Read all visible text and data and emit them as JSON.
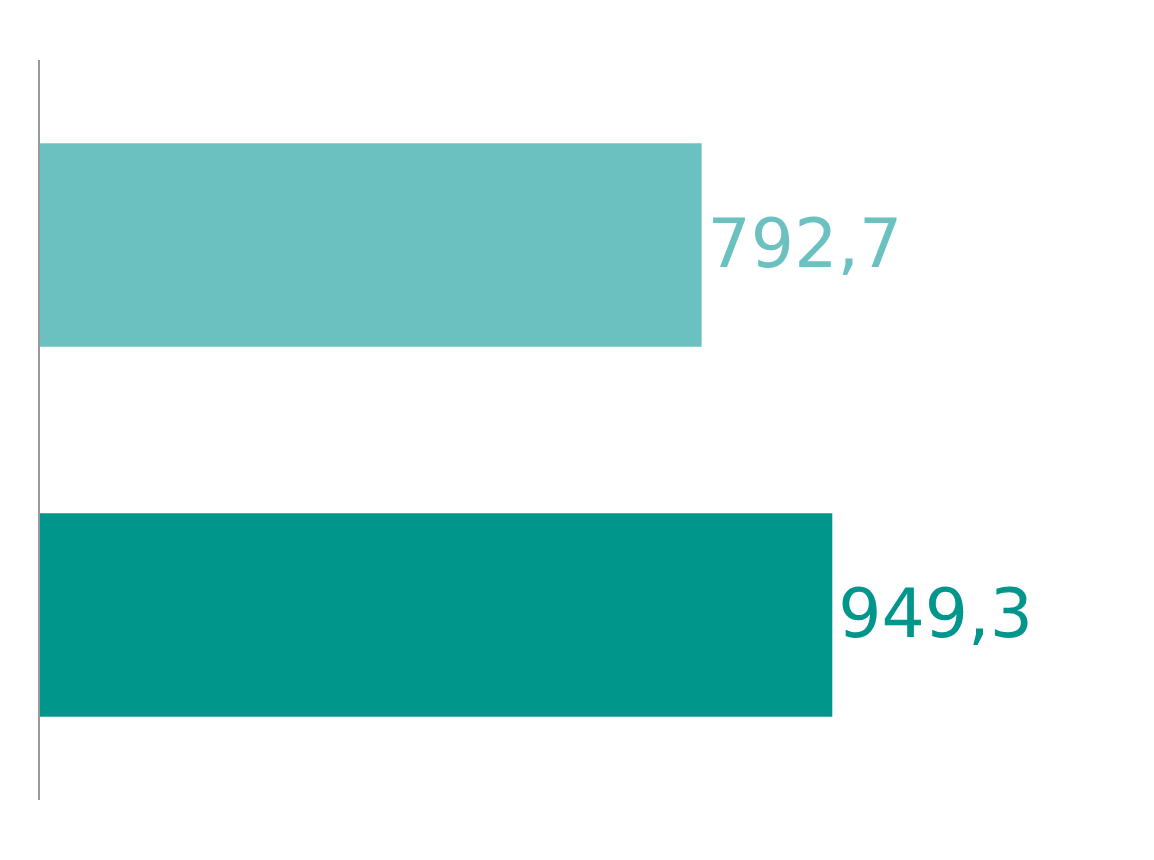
{
  "chart_data": {
    "type": "bar",
    "orientation": "horizontal",
    "categories": [
      null,
      null
    ],
    "values": [
      792.7,
      949.3
    ],
    "colors": [
      "#6bc1bf",
      "#00968c"
    ],
    "value_labels": [
      "792,7",
      "949,3"
    ]
  }
}
